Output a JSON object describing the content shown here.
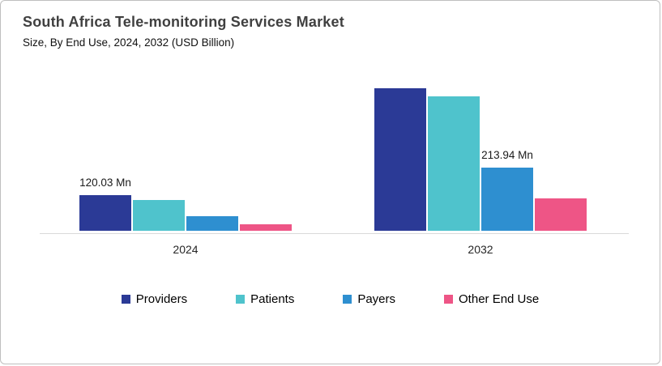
{
  "header": {
    "title": "South Africa Tele-monitoring Services Market",
    "subtitle": "Size, By End Use, 2024, 2032 (USD Billion)"
  },
  "chart_data": {
    "type": "bar",
    "categories": [
      "2024",
      "2032"
    ],
    "series": [
      {
        "name": "Providers",
        "color": "#2B3A96",
        "values": [
          120.03,
          482
        ]
      },
      {
        "name": "Patients",
        "color": "#4FC3CC",
        "values": [
          104,
          455
        ]
      },
      {
        "name": "Payers",
        "color": "#2E8FD0",
        "values": [
          48,
          213.94
        ]
      },
      {
        "name": "Other End Use",
        "color": "#EE5586",
        "values": [
          23,
          110
        ]
      }
    ],
    "data_labels": [
      {
        "series_index": 0,
        "category_index": 0,
        "text": "120.03 Mn"
      },
      {
        "series_index": 2,
        "category_index": 1,
        "text": "213.94 Mn"
      }
    ],
    "unit": "Mn",
    "ylim": [
      0,
      500
    ],
    "grid": false,
    "legend_position": "bottom",
    "xlabel": "",
    "ylabel": ""
  },
  "colors": {
    "frame_border": "#BFBFBF",
    "axis_line": "#D9D9D9",
    "title_text": "#404040"
  }
}
